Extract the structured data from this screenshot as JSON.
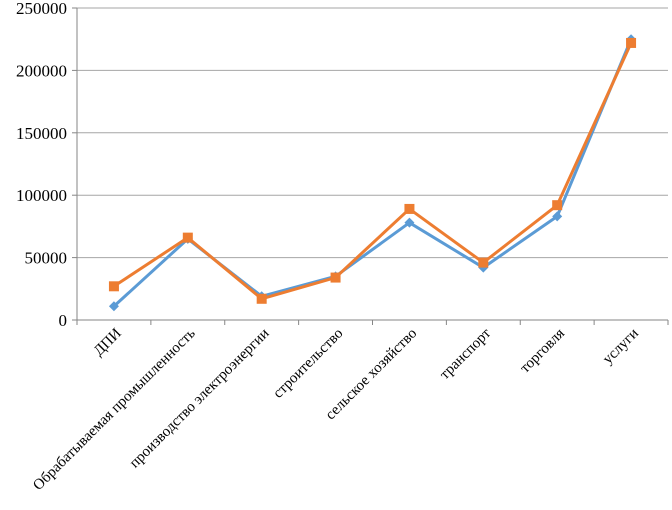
{
  "chart_data": {
    "type": "line",
    "title": "",
    "xlabel": "",
    "ylabel": "",
    "ylim": [
      0,
      250000
    ],
    "y_ticks": [
      "0",
      "50000",
      "100000",
      "150000",
      "200000",
      "250000"
    ],
    "y_tick_values": [
      0,
      50000,
      100000,
      150000,
      200000,
      250000
    ],
    "grid": true,
    "legend": "none",
    "categories": [
      "ДПИ",
      "Обрабатываемая промышленность",
      "производство электроэнергии",
      "строительство",
      "сельское хозяйство",
      "транспорт",
      "торговля",
      "услуги"
    ],
    "series": [
      {
        "color": "#5B9BD5",
        "marker": "diamond",
        "values": [
          11000,
          65000,
          19000,
          35000,
          78000,
          42000,
          83000,
          225000
        ]
      },
      {
        "color": "#ED7D31",
        "marker": "square",
        "values": [
          27000,
          66000,
          17000,
          34000,
          89000,
          46000,
          92000,
          222000
        ]
      }
    ]
  }
}
